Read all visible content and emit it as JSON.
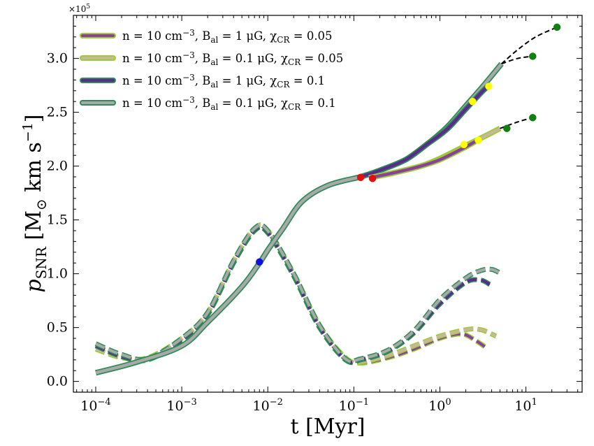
{
  "chart_data": {
    "type": "line",
    "xlabel": "t [Myr]",
    "ylabel": "p_SNR [M_⊙ km s^-1]",
    "ylabel_parts": {
      "p": "p",
      "sub": "SNR",
      "units": " [M",
      "odot": "⊙",
      "rest": " km s",
      "exp": "−1",
      "close": "]"
    },
    "x_scale": "log",
    "xlim": [
      5.5e-05,
      45
    ],
    "ylim": [
      -0.1,
      3.4
    ],
    "y_multiplier": "×10",
    "y_multiplier_exp": "5",
    "x_ticks": [
      {
        "value": 0.0001,
        "base": "10",
        "exp": "−4"
      },
      {
        "value": 0.001,
        "base": "10",
        "exp": "−3"
      },
      {
        "value": 0.01,
        "base": "10",
        "exp": "−2"
      },
      {
        "value": 0.1,
        "base": "10",
        "exp": "−1"
      },
      {
        "value": 1,
        "base": "10",
        "exp": "0"
      },
      {
        "value": 10,
        "base": "10",
        "exp": "1"
      }
    ],
    "y_ticks": [
      "0.0",
      "0.5",
      "1.0",
      "1.5",
      "2.0",
      "2.5",
      "3.0"
    ],
    "legend_position": "upper-left",
    "legend": [
      {
        "n": "n = 10 cm",
        "n_exp": "−3",
        "b": ", B",
        "b_sub": "al",
        "b_val": " = 1 μG, χ",
        "chi_sub": "CR",
        "chi_val": " = 0.05",
        "inner": "#8b3f9e",
        "outer": "#9acd32"
      },
      {
        "n": "n = 10 cm",
        "n_exp": "−3",
        "b": ", B",
        "b_sub": "al",
        "b_val": " = 0.1 μG, χ",
        "chi_sub": "CR",
        "chi_val": " = 0.05",
        "inner": "#c9b79c",
        "outer": "#9acd32"
      },
      {
        "n": "n = 10 cm",
        "n_exp": "−3",
        "b": ", B",
        "b_sub": "al",
        "b_val": " = 1 μG, χ",
        "chi_sub": "CR",
        "chi_val": " = 0.1",
        "inner": "#5b2a8c",
        "outer": "#2e8b57"
      },
      {
        "n": "n = 10 cm",
        "n_exp": "−3",
        "b": ", B",
        "b_sub": "al",
        "b_val": " = 0.1 μG, χ",
        "chi_sub": "CR",
        "chi_val": " = 0.1",
        "inner": "#a9a9a9",
        "outer": "#2e8b57"
      }
    ],
    "total_momentum_shared": [
      [
        0.0001,
        0.08
      ],
      [
        0.0003,
        0.18
      ],
      [
        0.001,
        0.33
      ],
      [
        0.002,
        0.55
      ],
      [
        0.005,
        0.88
      ],
      [
        0.008,
        1.1
      ],
      [
        0.01,
        1.22
      ],
      [
        0.015,
        1.42
      ],
      [
        0.025,
        1.67
      ],
      [
        0.05,
        1.82
      ],
      [
        0.12,
        1.9
      ]
    ],
    "total_momentum_tails": [
      {
        "series": "chi_0.1",
        "color": "#a9a9a9",
        "outline": "#2e8b57",
        "points": [
          [
            0.12,
            1.9
          ],
          [
            0.2,
            1.96
          ],
          [
            0.4,
            2.06
          ],
          [
            0.7,
            2.2
          ],
          [
            1.2,
            2.36
          ],
          [
            2,
            2.56
          ],
          [
            3,
            2.72
          ],
          [
            4.2,
            2.86
          ],
          [
            5.2,
            2.95
          ]
        ]
      },
      {
        "series": "chi_0.1_1uG",
        "color": "#5b2a8c",
        "outline": "#2e8b57",
        "points": [
          [
            0.12,
            1.9
          ],
          [
            0.2,
            1.96
          ],
          [
            0.4,
            2.06
          ],
          [
            0.7,
            2.2
          ],
          [
            1.2,
            2.34
          ],
          [
            2,
            2.53
          ],
          [
            3,
            2.68
          ],
          [
            3.8,
            2.76
          ]
        ]
      },
      {
        "series": "chi_0.05",
        "color": "#c9b79c",
        "outline": "#9acd32",
        "points": [
          [
            0.15,
            1.89
          ],
          [
            0.3,
            1.94
          ],
          [
            0.6,
            2.0
          ],
          [
            1,
            2.07
          ],
          [
            2,
            2.19
          ],
          [
            3,
            2.26
          ],
          [
            4,
            2.31
          ],
          [
            5,
            2.35
          ]
        ]
      },
      {
        "series": "chi_0.05_1uG",
        "color": "#8b3f9e",
        "outline": "#9acd32",
        "points": [
          [
            0.15,
            1.89
          ],
          [
            0.3,
            1.94
          ],
          [
            0.6,
            2.0
          ],
          [
            1,
            2.06
          ],
          [
            1.8,
            2.16
          ],
          [
            2.6,
            2.23
          ]
        ]
      }
    ],
    "extrapolations": [
      {
        "points": [
          [
            5.2,
            2.95
          ],
          [
            8,
            3.08
          ],
          [
            13,
            3.2
          ],
          [
            23,
            3.29
          ]
        ],
        "end": [
          23,
          3.29
        ]
      },
      {
        "points": [
          [
            5.2,
            2.95
          ],
          [
            8,
            3.0
          ],
          [
            12,
            3.02
          ]
        ],
        "end": [
          12,
          3.02
        ]
      },
      {
        "points": [
          [
            5,
            2.35
          ],
          [
            8,
            2.41
          ],
          [
            12,
            2.45
          ]
        ],
        "end": [
          12,
          2.45
        ]
      }
    ],
    "extra_end_markers": [
      [
        6,
        2.35
      ]
    ],
    "ejecta_momentum": [
      {
        "color": "#8b3f9e",
        "outline": "#9acd32",
        "points": [
          [
            0.0001,
            0.33
          ],
          [
            0.0002,
            0.23
          ],
          [
            0.0004,
            0.2
          ],
          [
            0.001,
            0.38
          ],
          [
            0.002,
            0.62
          ],
          [
            0.004,
            1.1
          ],
          [
            0.007,
            1.4
          ],
          [
            0.01,
            1.38
          ],
          [
            0.02,
            0.98
          ],
          [
            0.04,
            0.5
          ],
          [
            0.08,
            0.22
          ],
          [
            0.12,
            0.17
          ],
          [
            0.25,
            0.22
          ],
          [
            0.5,
            0.3
          ],
          [
            1,
            0.4
          ],
          [
            1.8,
            0.44
          ],
          [
            2.6,
            0.38
          ],
          [
            3.5,
            0.31
          ]
        ]
      },
      {
        "color": "#c9b79c",
        "outline": "#9acd32",
        "points": [
          [
            0.0001,
            0.3
          ],
          [
            0.0002,
            0.22
          ],
          [
            0.0004,
            0.22
          ],
          [
            0.001,
            0.4
          ],
          [
            0.002,
            0.64
          ],
          [
            0.004,
            1.12
          ],
          [
            0.007,
            1.42
          ],
          [
            0.01,
            1.4
          ],
          [
            0.02,
            1.0
          ],
          [
            0.04,
            0.52
          ],
          [
            0.08,
            0.22
          ],
          [
            0.12,
            0.18
          ],
          [
            0.25,
            0.24
          ],
          [
            0.5,
            0.33
          ],
          [
            1,
            0.42
          ],
          [
            2,
            0.48
          ],
          [
            3,
            0.48
          ],
          [
            4.5,
            0.42
          ]
        ]
      },
      {
        "color": "#5b2a8c",
        "outline": "#2e8b57",
        "points": [
          [
            0.0001,
            0.33
          ],
          [
            0.0002,
            0.23
          ],
          [
            0.0004,
            0.2
          ],
          [
            0.001,
            0.38
          ],
          [
            0.002,
            0.62
          ],
          [
            0.004,
            1.1
          ],
          [
            0.007,
            1.4
          ],
          [
            0.01,
            1.38
          ],
          [
            0.02,
            0.98
          ],
          [
            0.04,
            0.5
          ],
          [
            0.08,
            0.2
          ],
          [
            0.12,
            0.2
          ],
          [
            0.25,
            0.28
          ],
          [
            0.5,
            0.45
          ],
          [
            1,
            0.72
          ],
          [
            2,
            0.92
          ],
          [
            3,
            0.94
          ],
          [
            3.8,
            0.9
          ]
        ]
      },
      {
        "color": "#a9a9a9",
        "outline": "#2e8b57",
        "points": [
          [
            0.0001,
            0.35
          ],
          [
            0.0002,
            0.25
          ],
          [
            0.0004,
            0.21
          ],
          [
            0.001,
            0.4
          ],
          [
            0.002,
            0.64
          ],
          [
            0.004,
            1.12
          ],
          [
            0.007,
            1.42
          ],
          [
            0.01,
            1.4
          ],
          [
            0.02,
            1.0
          ],
          [
            0.04,
            0.52
          ],
          [
            0.08,
            0.21
          ],
          [
            0.12,
            0.21
          ],
          [
            0.25,
            0.29
          ],
          [
            0.5,
            0.47
          ],
          [
            1,
            0.76
          ],
          [
            2,
            0.96
          ],
          [
            3,
            1.03
          ],
          [
            4,
            1.04
          ],
          [
            5.2,
            1.0
          ]
        ]
      }
    ],
    "markers": [
      {
        "x": 0.008,
        "y": 1.11,
        "color": "#1010e0"
      },
      {
        "x": 0.12,
        "y": 1.895,
        "color": "#e01010"
      },
      {
        "x": 0.165,
        "y": 1.885,
        "color": "#e01010"
      },
      {
        "x": 2.4,
        "y": 2.6,
        "color": "#ffff00"
      },
      {
        "x": 3.7,
        "y": 2.74,
        "color": "#ffff00"
      },
      {
        "x": 1.9,
        "y": 2.2,
        "color": "#ffff00"
      },
      {
        "x": 2.8,
        "y": 2.24,
        "color": "#ffff00"
      },
      {
        "x": 23,
        "y": 3.29,
        "color": "#108010"
      },
      {
        "x": 12,
        "y": 3.02,
        "color": "#108010"
      },
      {
        "x": 12,
        "y": 2.45,
        "color": "#108010"
      },
      {
        "x": 6,
        "y": 2.35,
        "color": "#108010"
      }
    ]
  }
}
